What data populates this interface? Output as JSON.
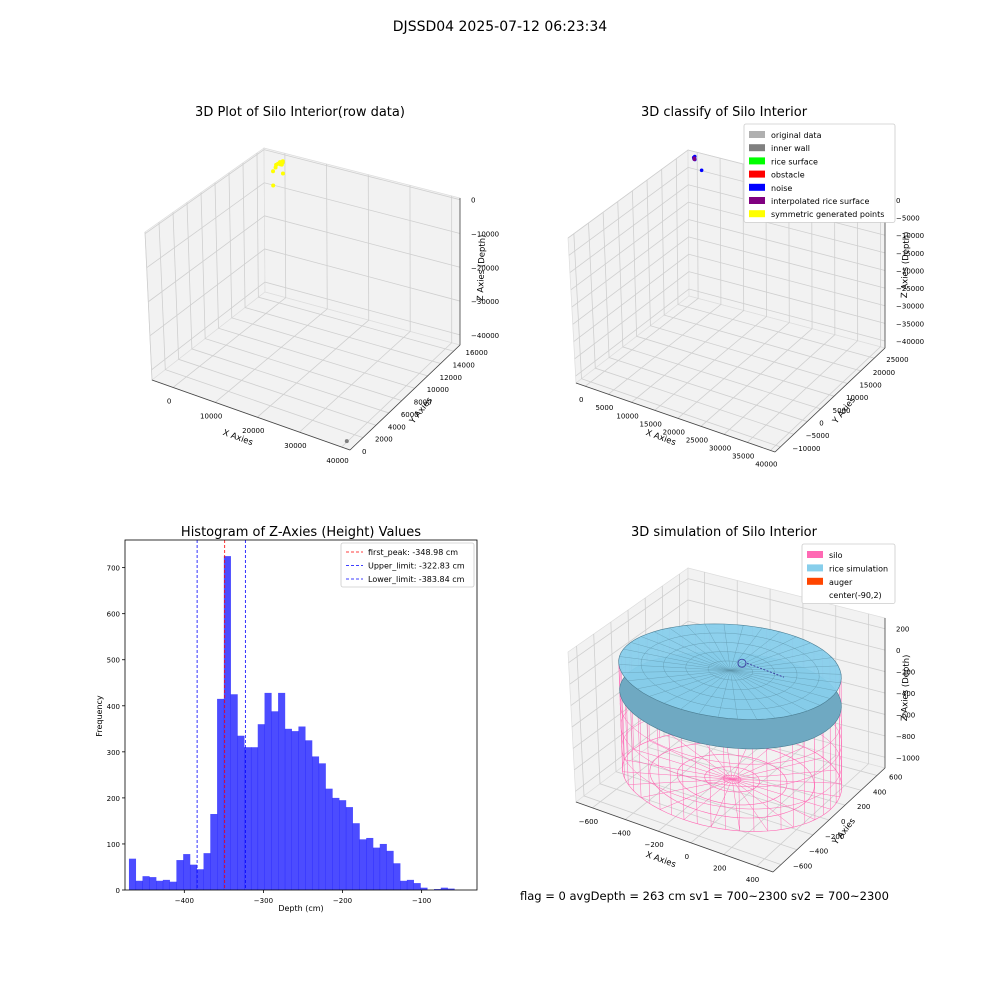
{
  "suptitle": "DJSSD04 2025-07-12 06:23:34",
  "chart_data": [
    {
      "type": "scatter",
      "projection": "3d",
      "title": "3D Plot of Silo Interior(row data)",
      "xlabel": "X Axies",
      "ylabel": "Y Axies",
      "zlabel": "Z Axies (Depth)",
      "xlim": [
        -5000,
        42000
      ],
      "ylim": [
        0,
        17000
      ],
      "zlim": [
        -43000,
        500
      ],
      "x_ticks": [
        "0",
        "10000",
        "20000",
        "30000",
        "40000"
      ],
      "y_ticks": [
        "0",
        "2000",
        "4000",
        "6000",
        "8000",
        "10000",
        "12000",
        "14000",
        "16000"
      ],
      "z_ticks": [
        "0",
        "−10000",
        "−20000",
        "−30000",
        "−40000"
      ],
      "grid": true,
      "series": [
        {
          "color": "#ffff00",
          "points": [
            [
              500,
              16000,
              -500
            ],
            [
              900,
              15800,
              -700
            ],
            [
              700,
              15600,
              -300
            ],
            [
              1100,
              15900,
              -900
            ],
            [
              400,
              15500,
              -600
            ],
            [
              1300,
              15700,
              -400
            ],
            [
              800,
              16200,
              -800
            ],
            [
              600,
              15300,
              -1000
            ],
            [
              1000,
              16100,
              -200
            ],
            [
              3200,
              14800,
              -1200
            ],
            [
              2500,
              13800,
              -3500
            ],
            [
              1500,
              14400,
              -500
            ]
          ]
        },
        {
          "color": "#808080",
          "points": [
            [
              40500,
              500,
              -42000
            ]
          ]
        }
      ]
    },
    {
      "type": "scatter",
      "projection": "3d",
      "title": "3D classify of Silo Interior",
      "xlabel": "X Axies",
      "ylabel": "Y Axies",
      "zlabel": "Z Axies (Depth)",
      "xlim": [
        -2000,
        41000
      ],
      "ylim": [
        -12000,
        29000
      ],
      "zlim": [
        -42000,
        0
      ],
      "x_ticks": [
        "0",
        "5000",
        "10000",
        "15000",
        "20000",
        "25000",
        "30000",
        "35000",
        "40000"
      ],
      "y_ticks": [
        "−10000",
        "−5000",
        "0",
        "5000",
        "10000",
        "15000",
        "20000",
        "25000"
      ],
      "z_ticks": [
        "0",
        "−5000",
        "−10000",
        "−15000",
        "−20000",
        "−25000",
        "−30000",
        "−35000",
        "−40000"
      ],
      "grid": true,
      "legend_position": "top-right",
      "legend": [
        {
          "label": "original data",
          "color": "#b0b0b0"
        },
        {
          "label": "inner wall",
          "color": "#808080"
        },
        {
          "label": "rice surface",
          "color": "#00ff00"
        },
        {
          "label": "obstacle",
          "color": "#ff0000"
        },
        {
          "label": "noise",
          "color": "#0000ff"
        },
        {
          "label": "interpolated rice surface",
          "color": "#800080"
        },
        {
          "label": "symmetric generated points",
          "color": "#ffff00"
        }
      ],
      "series": [
        {
          "color": "#0000ff",
          "points": [
            [
              200,
              27500,
              -500
            ],
            [
              400,
              27300,
              -700
            ],
            [
              300,
              27700,
              -300
            ],
            [
              500,
              27400,
              -900
            ],
            [
              600,
              27200,
              -600
            ],
            [
              3500,
              25000,
              -1500
            ]
          ]
        },
        {
          "color": "#800080",
          "points": [
            [
              350,
              27450,
              -600
            ],
            [
              450,
              27350,
              -800
            ]
          ]
        }
      ]
    },
    {
      "type": "histogram",
      "title": "Histogram of Z-Axies (Height) Values",
      "xlabel": "Depth (cm)",
      "ylabel": "Frequency",
      "xlim": [
        -475,
        -30
      ],
      "ylim": [
        0,
        760
      ],
      "x_ticks": [
        -400,
        -300,
        -200,
        -100
      ],
      "x_tick_labels": [
        "−400",
        "−300",
        "−200",
        "−100"
      ],
      "y_ticks": [
        0,
        100,
        200,
        300,
        400,
        500,
        600,
        700
      ],
      "bar_color": "#0000ff",
      "bins_start": -470,
      "bin_width": 8.57,
      "counts": [
        68,
        20,
        30,
        28,
        20,
        22,
        18,
        65,
        78,
        55,
        45,
        80,
        165,
        415,
        725,
        425,
        335,
        310,
        310,
        360,
        428,
        388,
        428,
        350,
        345,
        355,
        325,
        290,
        275,
        220,
        200,
        195,
        180,
        145,
        110,
        113,
        92,
        100,
        85,
        58,
        20,
        22,
        15,
        5,
        0,
        2,
        5,
        3
      ],
      "vlines": [
        {
          "label": "first_peak: -348.98 cm",
          "x": -348.98,
          "color": "#ff0000"
        },
        {
          "label": "Upper_limit: -322.83 cm",
          "x": -322.83,
          "color": "#0000ff"
        },
        {
          "label": "Lower_limit: -383.84 cm",
          "x": -383.84,
          "color": "#0000ff"
        }
      ],
      "legend_position": "top-right"
    },
    {
      "type": "surface",
      "projection": "3d",
      "title": "3D simulation of Silo Interior",
      "xlabel": "X Axies",
      "ylabel": "Y Axies",
      "zlabel": "Z Axies (Depth)",
      "xlim": [
        -700,
        500
      ],
      "ylim": [
        -700,
        700
      ],
      "zlim": [
        -1100,
        300
      ],
      "x_ticks": [
        "−600",
        "−400",
        "−200",
        "0",
        "200",
        "400"
      ],
      "y_ticks": [
        "−600",
        "−400",
        "−200",
        "0",
        "200",
        "400",
        "600"
      ],
      "z_ticks": [
        "200",
        "0",
        "−200",
        "−400",
        "−600",
        "−800",
        "−1000"
      ],
      "grid": true,
      "legend_position": "top-right",
      "legend": [
        {
          "label": "silo",
          "color": "#ff69b4"
        },
        {
          "label": "rice simulation",
          "color": "#87ceeb"
        },
        {
          "label": "auger",
          "color": "#ff4500"
        },
        {
          "label": "center(-90,2)",
          "color": ""
        }
      ],
      "silo": {
        "center": [
          -90,
          2
        ],
        "radius": 600,
        "top": 0,
        "bottom": -1000
      },
      "rice_surface_depth": -263,
      "footer": "flag = 0     avgDepth = 263 cm  sv1 = 700~2300  sv2 = 700~2300"
    }
  ]
}
